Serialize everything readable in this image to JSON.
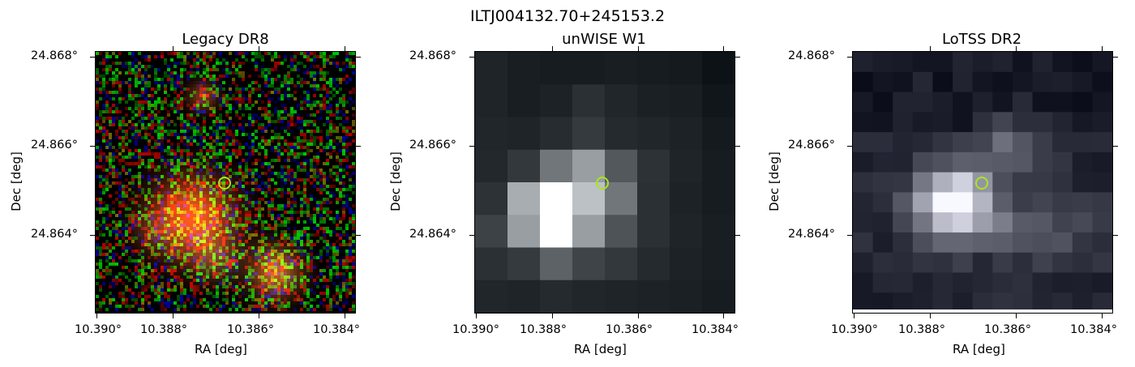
{
  "title": "ILTJ004132.70+245153.2",
  "panels": [
    {
      "title": "Legacy DR8",
      "xlabel": "RA [deg]",
      "ylabel": "Dec [deg]",
      "xticks": [
        "10.390°",
        "10.388°",
        "10.386°",
        "10.384°"
      ],
      "yticks": [
        "24.868°",
        "24.866°",
        "24.864°"
      ],
      "image": "rgb-optical-cutout",
      "marker": "source-position-circle"
    },
    {
      "title": "unWISE W1",
      "xlabel": "RA [deg]",
      "ylabel": "Dec [deg]",
      "xticks": [
        "10.390°",
        "10.388°",
        "10.386°",
        "10.384°"
      ],
      "yticks": [
        "24.868°",
        "24.866°",
        "24.864°"
      ],
      "image": "infrared-cutout",
      "marker": "source-position-circle"
    },
    {
      "title": "LoTSS DR2",
      "xlabel": "RA [deg]",
      "ylabel": "Dec [deg]",
      "xticks": [
        "10.390°",
        "10.388°",
        "10.386°",
        "10.384°"
      ],
      "yticks": [
        "24.868°",
        "24.866°",
        "24.864°"
      ],
      "image": "radio-cutout",
      "marker": "source-position-circle"
    }
  ],
  "colors": {
    "marker": "#a8e61e",
    "optical_source": "#e8501e"
  }
}
